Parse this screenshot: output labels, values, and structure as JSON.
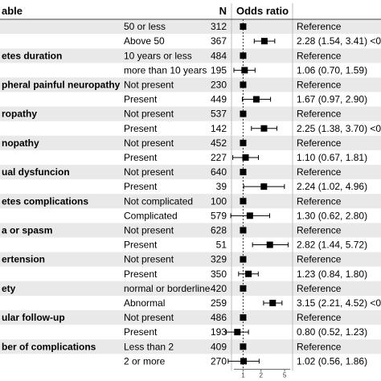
{
  "header": {
    "variable": "able",
    "n": "N",
    "odds_ratio": "Odds ratio"
  },
  "chart_data": {
    "type": "forest",
    "x_scale": "log",
    "xlim": [
      0.7,
      6.2
    ],
    "reference_value": 1,
    "x_ticks": [
      {
        "value": 1,
        "label": "1"
      },
      {
        "value": 2,
        "label": "2"
      },
      {
        "value": 5,
        "label": "5"
      }
    ],
    "rows": [
      {
        "variable": "",
        "level": "50 or less",
        "n": "312",
        "text": "Reference",
        "or": 1
      },
      {
        "variable": "",
        "level": "Above 50",
        "n": "367",
        "text": "2.28 (1.54, 3.41) <0",
        "or": 2.28,
        "lo": 1.54,
        "hi": 3.41
      },
      {
        "variable": "etes duration",
        "level": "10 years or less",
        "n": "484",
        "text": "Reference",
        "or": 1
      },
      {
        "variable": "",
        "level": "more than 10 years",
        "n": "195",
        "text": "1.06 (0.70, 1.59)",
        "or": 1.06,
        "lo": 0.7,
        "hi": 1.59
      },
      {
        "variable": "pheral painful neuropathy",
        "level": "Not present",
        "n": "230",
        "text": "Reference",
        "or": 1
      },
      {
        "variable": "",
        "level": "Present",
        "n": "449",
        "text": "1.67 (0.97, 2.90)",
        "or": 1.67,
        "lo": 0.97,
        "hi": 2.9
      },
      {
        "variable": "ropathy",
        "level": "Not present",
        "n": "537",
        "text": "Reference",
        "or": 1
      },
      {
        "variable": "",
        "level": "Present",
        "n": "142",
        "text": "2.25 (1.38, 3.70) <0",
        "or": 2.25,
        "lo": 1.38,
        "hi": 3.7
      },
      {
        "variable": "nopathy",
        "level": "Not present",
        "n": "452",
        "text": "Reference",
        "or": 1
      },
      {
        "variable": "",
        "level": "Present",
        "n": "227",
        "text": "1.10 (0.67, 1.81)",
        "or": 1.1,
        "lo": 0.67,
        "hi": 1.81
      },
      {
        "variable": "ual dysfuncion",
        "level": "Not present",
        "n": "640",
        "text": "Reference",
        "or": 1
      },
      {
        "variable": "",
        "level": "Present",
        "n": "39",
        "text": "2.24 (1.02, 4.96)",
        "or": 2.24,
        "lo": 1.02,
        "hi": 4.96
      },
      {
        "variable": "etes complications",
        "level": "Not complicated",
        "n": "100",
        "text": "Reference",
        "or": 1
      },
      {
        "variable": "",
        "level": "Complicated",
        "n": "579",
        "text": "1.30 (0.62, 2.80)",
        "or": 1.3,
        "lo": 0.62,
        "hi": 2.8
      },
      {
        "variable": "a or spasm",
        "level": "Not present",
        "n": "628",
        "text": "Reference",
        "or": 1
      },
      {
        "variable": "",
        "level": "Present",
        "n": "51",
        "text": "2.82 (1.44, 5.72)",
        "or": 2.82,
        "lo": 1.44,
        "hi": 5.72
      },
      {
        "variable": "ertension",
        "level": "Not present",
        "n": "329",
        "text": "Reference",
        "or": 1
      },
      {
        "variable": "",
        "level": "Present",
        "n": "350",
        "text": "1.23 (0.84, 1.80)",
        "or": 1.23,
        "lo": 0.84,
        "hi": 1.8
      },
      {
        "variable": "ety",
        "level": "normal or borderline",
        "n": "420",
        "text": "Reference",
        "or": 1
      },
      {
        "variable": "",
        "level": "Abnormal",
        "n": "259",
        "text": "3.15 (2.21, 4.52) <0",
        "or": 3.15,
        "lo": 2.21,
        "hi": 4.52
      },
      {
        "variable": "ular follow-up",
        "level": "Not present",
        "n": "486",
        "text": "Reference",
        "or": 1
      },
      {
        "variable": "",
        "level": "Present",
        "n": "193",
        "text": "0.80 (0.52, 1.23)",
        "or": 0.8,
        "lo": 0.52,
        "hi": 1.23
      },
      {
        "variable": "ber of complications",
        "level": "Less than 2",
        "n": "409",
        "text": "Reference",
        "or": 1
      },
      {
        "variable": "",
        "level": "2 or more",
        "n": "270",
        "text": "1.02 (0.56, 1.86)",
        "or": 1.02,
        "lo": 0.56,
        "hi": 1.86
      }
    ]
  }
}
